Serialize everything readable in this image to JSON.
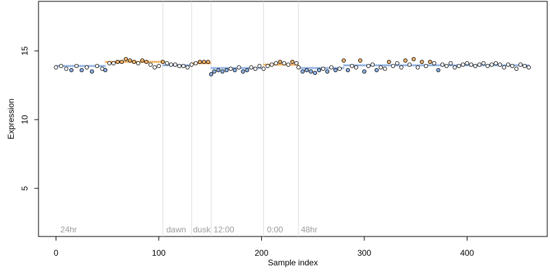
{
  "chart_data": {
    "type": "scatter",
    "xlabel": "Sample index",
    "ylabel": "Expression",
    "xlim": [
      -17,
      478
    ],
    "ylim": [
      1.5,
      18.6
    ],
    "x_ticks": [
      0,
      100,
      200,
      300,
      400
    ],
    "y_ticks": [
      5,
      10,
      15
    ],
    "segment_boundaries": [
      104,
      132,
      151,
      202,
      236
    ],
    "segment_labels": [
      {
        "x": 3,
        "label": "24hr"
      },
      {
        "x": 106,
        "label": "dawn"
      },
      {
        "x": 132,
        "label": "dusk"
      },
      {
        "x": 152,
        "label": "12:00"
      },
      {
        "x": 204,
        "label": "0:00"
      },
      {
        "x": 237,
        "label": "48hr"
      }
    ],
    "baseline_bands": [
      {
        "x_start": 0,
        "x_end": 48,
        "y": 13.9
      },
      {
        "x_start": 48,
        "x_end": 104,
        "y": 14.2
      },
      {
        "x_start": 104,
        "x_end": 132,
        "y": 13.95
      },
      {
        "x_start": 132,
        "x_end": 151,
        "y": 14.1
      },
      {
        "x_start": 151,
        "x_end": 202,
        "y": 13.75
      },
      {
        "x_start": 202,
        "x_end": 236,
        "y": 14.0
      },
      {
        "x_start": 236,
        "x_end": 280,
        "y": 13.75
      },
      {
        "x_start": 280,
        "x_end": 460,
        "y": 13.95
      }
    ],
    "series": [
      {
        "x": [
          0,
          5,
          10,
          15,
          20,
          25,
          30,
          35,
          40,
          45,
          48,
          52,
          56,
          60,
          64,
          68,
          72,
          76,
          80,
          84,
          88,
          92,
          96,
          100,
          104,
          108,
          112,
          116,
          120,
          124,
          128,
          132,
          136,
          140,
          144,
          148,
          151,
          154,
          158,
          162,
          166,
          170,
          174,
          178,
          182,
          186,
          190,
          194,
          198,
          202,
          206,
          210,
          214,
          218,
          222,
          226,
          230,
          234,
          236,
          240,
          244,
          248,
          252,
          256,
          260,
          264,
          268,
          272,
          276,
          280,
          284,
          288,
          292,
          296,
          300,
          304,
          308,
          312,
          316,
          320,
          324,
          328,
          332,
          336,
          340,
          344,
          348,
          352,
          356,
          360,
          364,
          368,
          372,
          376,
          380,
          384,
          388,
          392,
          396,
          400,
          404,
          408,
          412,
          416,
          420,
          424,
          428,
          432,
          436,
          440,
          444,
          448,
          452,
          456,
          460
        ],
        "y": [
          13.8,
          13.9,
          13.7,
          13.6,
          13.9,
          13.6,
          13.8,
          13.5,
          13.9,
          13.7,
          13.6,
          14.1,
          14.1,
          14.2,
          14.2,
          14.4,
          14.3,
          14.2,
          14.1,
          14.3,
          14.2,
          14.0,
          13.8,
          13.9,
          14.2,
          14.1,
          14.0,
          14.0,
          13.9,
          13.9,
          13.8,
          14.0,
          14.1,
          14.2,
          14.2,
          14.2,
          13.3,
          13.5,
          13.6,
          13.5,
          13.6,
          13.7,
          13.6,
          13.8,
          13.5,
          13.6,
          13.8,
          13.7,
          13.9,
          13.7,
          13.9,
          14.0,
          14.1,
          14.2,
          14.1,
          14.0,
          14.2,
          14.1,
          13.8,
          13.5,
          13.6,
          13.5,
          13.4,
          13.6,
          13.7,
          13.5,
          13.8,
          13.6,
          13.7,
          14.3,
          13.6,
          13.9,
          13.8,
          14.3,
          13.5,
          13.9,
          14.0,
          13.6,
          13.8,
          13.7,
          14.2,
          13.9,
          14.1,
          13.8,
          14.3,
          14.0,
          14.4,
          13.8,
          14.2,
          13.9,
          14.2,
          14.1,
          13.6,
          14.0,
          13.9,
          14.1,
          13.8,
          13.9,
          14.0,
          14.1,
          14.0,
          13.9,
          14.0,
          14.1,
          13.9,
          14.0,
          14.1,
          14.0,
          13.8,
          14.0,
          13.9,
          13.7,
          14.0,
          13.9,
          13.8
        ]
      }
    ]
  }
}
